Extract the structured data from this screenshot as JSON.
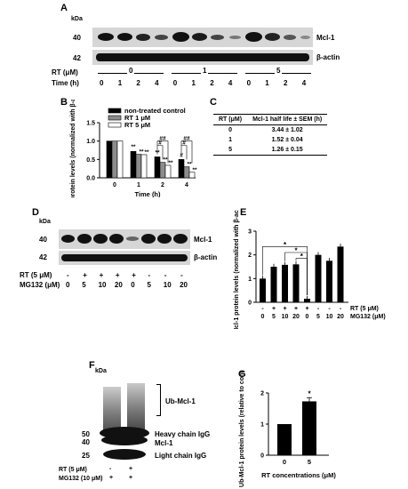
{
  "panelA": {
    "label": "A",
    "kda": "kDa",
    "mw": [
      "40",
      "42"
    ],
    "proteins": [
      "Mcl-1",
      "β-actin"
    ],
    "rt_label": "RT (μM)",
    "time_label": "Time (h)",
    "rt_groups": [
      "0",
      "1",
      "5"
    ],
    "times": [
      "0",
      "1",
      "2",
      "4",
      "0",
      "1",
      "2",
      "4",
      "0",
      "1",
      "2",
      "4"
    ]
  },
  "panelB": {
    "label": "B"
  },
  "panelC": {
    "label": "C",
    "headers": [
      "RT (μM)",
      "Mcl-1 half life ± SEM (h)"
    ],
    "rows": [
      {
        "rt": "0",
        "half_life": "3.44 ± 1.02"
      },
      {
        "rt": "1",
        "half_life": "1.52 ± 0.04"
      },
      {
        "rt": "5",
        "half_life": "1.26 ± 0.15"
      }
    ]
  },
  "panelD": {
    "label": "D",
    "kda": "kDa",
    "mw": [
      "40",
      "42"
    ],
    "proteins": [
      "Mcl-1",
      "β-actin"
    ],
    "rt_label": "RT (5 μM)",
    "mg_label": "MG132 (μM)",
    "rt_signs": [
      "-",
      "+",
      "+",
      "+",
      "+",
      "-",
      "-",
      "-"
    ],
    "mg_values": [
      "0",
      "5",
      "10",
      "20",
      "0",
      "5",
      "10",
      "20"
    ]
  },
  "panelE": {
    "label": "E"
  },
  "panelF": {
    "label": "F",
    "kda": "kDa",
    "mw": [
      "50",
      "40",
      "25"
    ],
    "annotations": [
      "Ub-Mcl-1",
      "Heavy chain IgG",
      "Mcl-1",
      "Light chain IgG"
    ],
    "rt_label": "RT (5 μM)",
    "mg_label": "MG132 (10 μM)",
    "rt_signs": [
      "-",
      "+"
    ],
    "mg_signs": [
      "+",
      "+"
    ]
  },
  "panelG": {
    "label": "G"
  },
  "chart_data": [
    {
      "id": "B",
      "type": "bar",
      "ylabel": "Mcl-1protein levels (normalized with β-actin)",
      "xlabel": "Time (h)",
      "categories": [
        "0",
        "1",
        "2",
        "4"
      ],
      "ylim": [
        0.0,
        1.5
      ],
      "yticks": [
        "0.0",
        "0.5",
        "1.0",
        "1.5"
      ],
      "legend": "top-right",
      "series": [
        {
          "name": "non-treated control",
          "color": "#000000",
          "values": [
            1.0,
            0.72,
            0.57,
            0.5
          ]
        },
        {
          "name": "RT 1 μM",
          "color": "#8c8c8c",
          "values": [
            1.0,
            0.64,
            0.42,
            0.3
          ]
        },
        {
          "name": "RT 5 μM",
          "color": "#ffffff",
          "values": [
            1.0,
            0.63,
            0.34,
            0.15
          ]
        }
      ],
      "annotations": [
        "**",
        "**",
        "**",
        "**",
        "**",
        "**",
        "**",
        "**",
        "#",
        "##",
        "#",
        "##"
      ]
    },
    {
      "id": "E",
      "type": "bar",
      "ylabel": "Mcl-1 protein levels (normalized with β-actin)",
      "ylim": [
        0,
        3
      ],
      "yticks": [
        "0",
        "1",
        "2",
        "3"
      ],
      "categories": [
        "1",
        "2",
        "3",
        "4",
        "5",
        "6",
        "7",
        "8"
      ],
      "tick_rows": [
        {
          "label": "RT (5 μM)",
          "values": [
            "-",
            "+",
            "+",
            "+",
            "+",
            "-",
            "-",
            "-"
          ]
        },
        {
          "label": "MG132 (μM)",
          "values": [
            "0",
            "5",
            "10",
            "20",
            "0",
            "5",
            "10",
            "20"
          ]
        }
      ],
      "values": [
        1.0,
        1.5,
        1.58,
        1.6,
        0.15,
        2.0,
        1.75,
        2.35
      ],
      "annotations": [
        "*",
        "*",
        "*"
      ]
    },
    {
      "id": "G",
      "type": "bar",
      "ylabel": "Ub-Mcl-1 protein levels (relative to control)",
      "xlabel": "RT concentrations (μM)",
      "categories": [
        "0",
        "5"
      ],
      "values": [
        1.0,
        1.73
      ],
      "ylim": [
        0,
        2
      ],
      "yticks": [
        "0",
        "1",
        "2"
      ],
      "annotations": [
        "*"
      ]
    }
  ]
}
